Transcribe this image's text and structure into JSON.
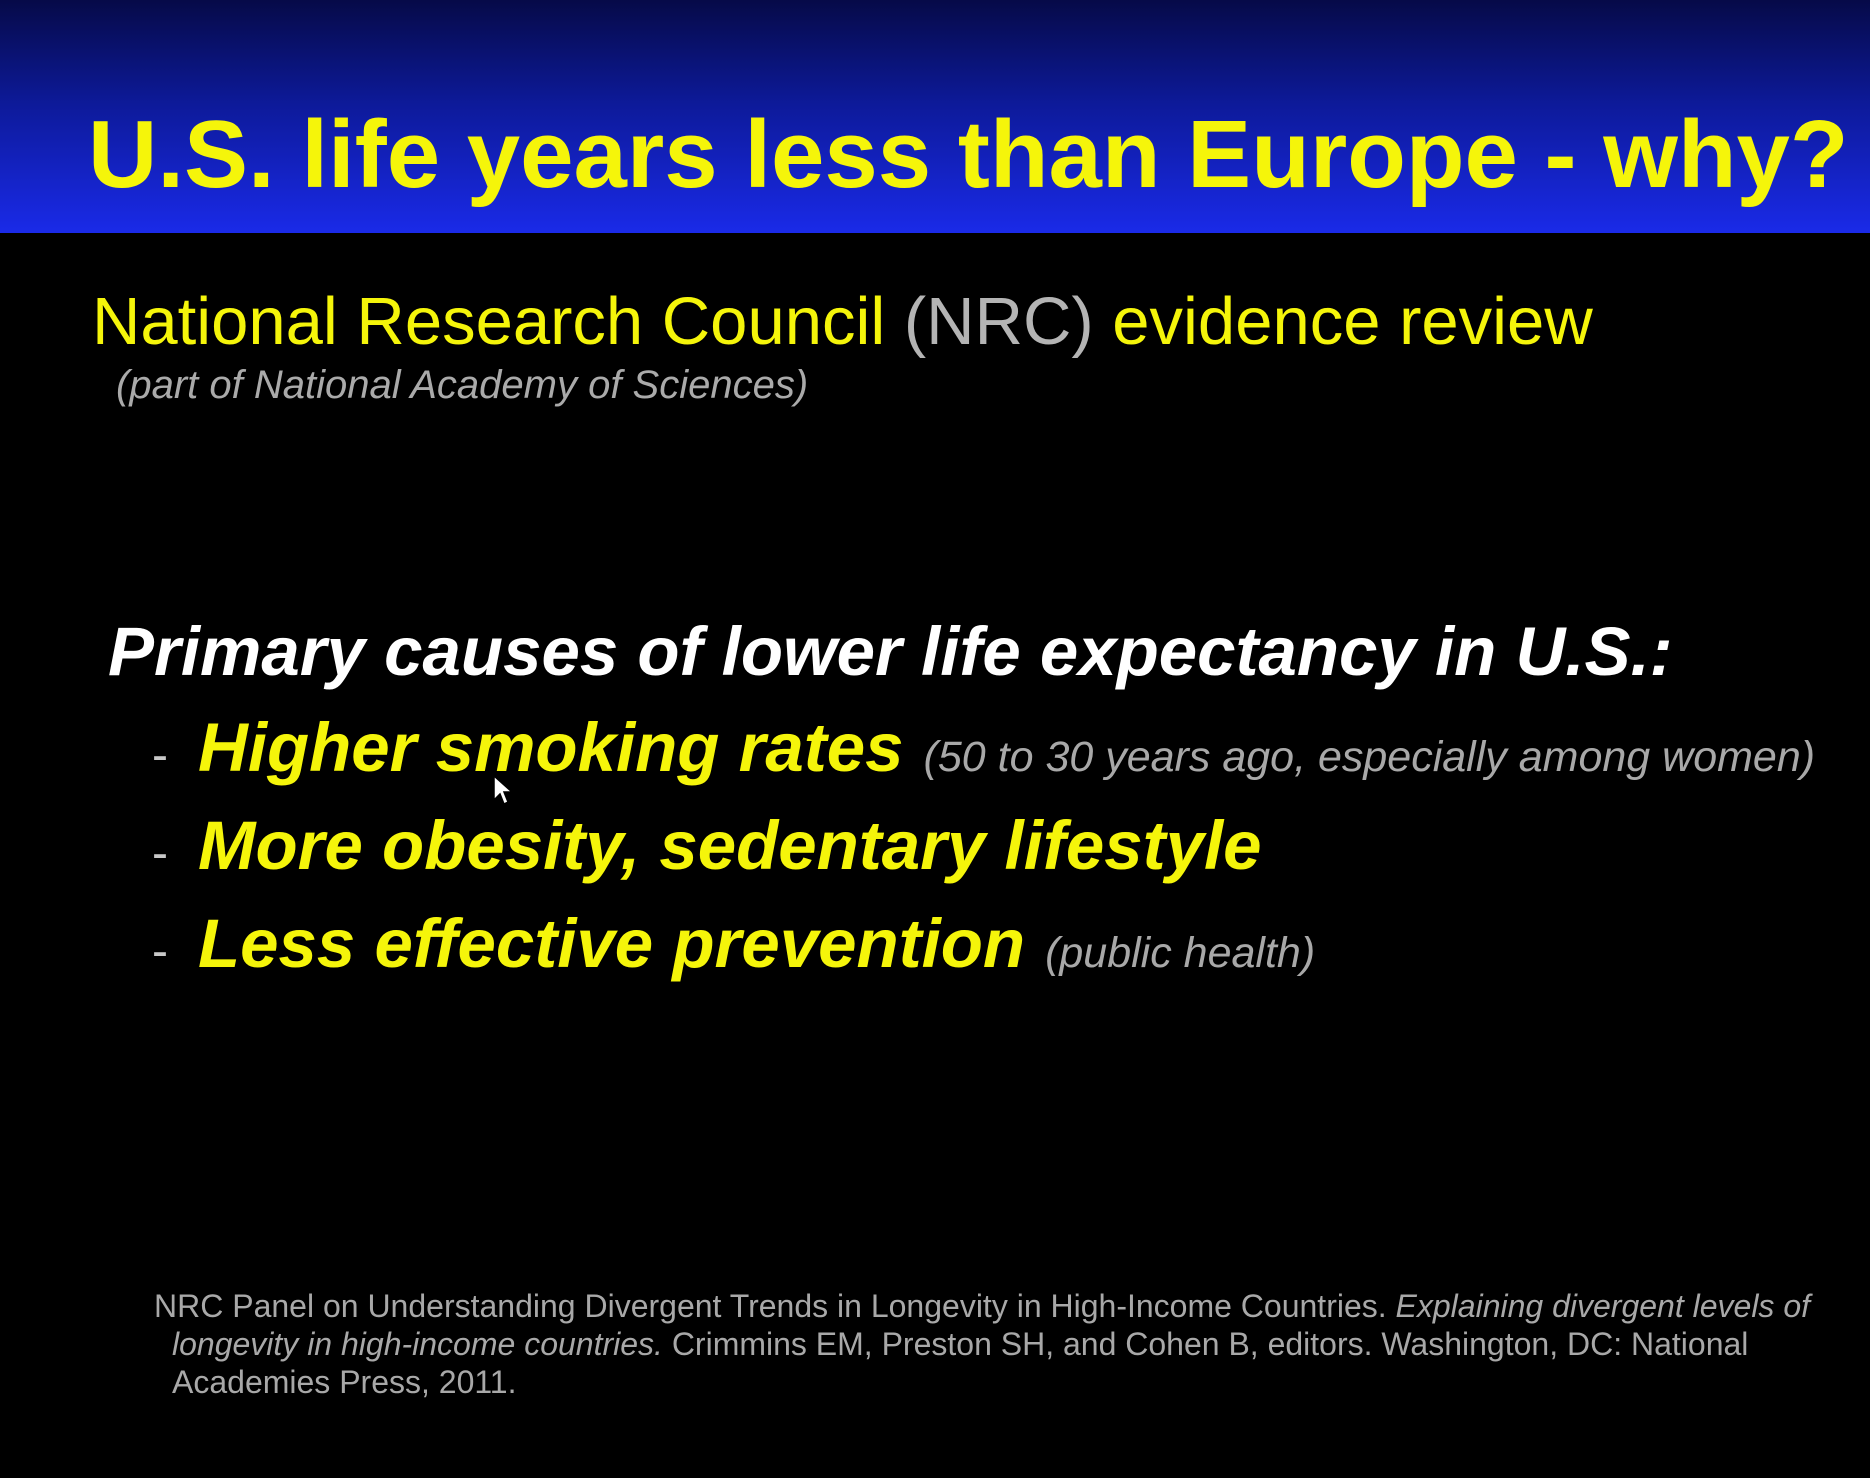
{
  "slide": {
    "title": "U.S. life years less than Europe - why?",
    "source_line": {
      "lead": "National Research Council",
      "abbr": "(NRC)",
      "tail": "evidence review"
    },
    "source_sub": "(part of National Academy of Sciences)",
    "causes_heading": "Primary causes of lower life expectancy in U.S.:",
    "causes": [
      {
        "dash": "-",
        "text": "Higher smoking rates",
        "note": "(50 to 30 years ago, especially among women)"
      },
      {
        "dash": "-",
        "text": "More obesity, sedentary lifestyle",
        "note": ""
      },
      {
        "dash": "-",
        "text": "Less effective prevention",
        "note": "(public health)"
      }
    ],
    "citation": {
      "part1": "NRC Panel on Understanding Divergent Trends in Longevity in High-Income Countries.  ",
      "part2_italic": "Explaining divergent levels of longevity in high-income countries.",
      "part3": " Crimmins EM, Preston SH, and Cohen B, editors.  Washington, DC: National Academies Press, 2011."
    }
  },
  "colors": {
    "title_text": "#f5f50a",
    "title_bar_top": "#060a48",
    "title_bar_bottom": "#1a2ae8",
    "background": "#000000",
    "highlight_text": "#f5f50a",
    "heading_text": "#ffffff",
    "muted_text": "#a8a8a8"
  },
  "icons": {
    "cursor": "mouse-pointer-icon"
  }
}
